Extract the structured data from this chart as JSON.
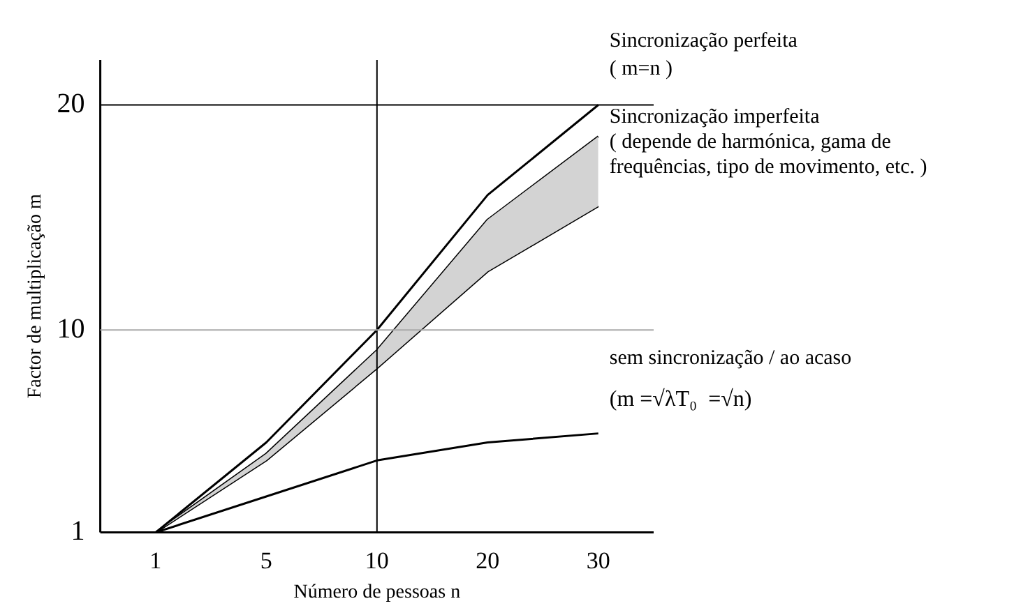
{
  "chart_data": {
    "type": "line",
    "xlabel": "Número de pessoas n",
    "ylabel": "Factor de multiplicação m",
    "categories": [
      "1",
      "5",
      "10",
      "20",
      "30"
    ],
    "ylim": [
      1,
      22
    ],
    "yticks": [
      1,
      10,
      20
    ],
    "series": [
      {
        "name": "Sincronização perfeita",
        "color": "#000000",
        "values": [
          1,
          5,
          10,
          16,
          20
        ]
      },
      {
        "name": "Sincronização imperfeita",
        "color": "#000000",
        "values": [
          1,
          4.5,
          9.1,
          14.9,
          18.6
        ],
        "lower": [
          1,
          4.2,
          8.3,
          12.6,
          15.5
        ],
        "upper": [
          1,
          4.5,
          9.1,
          14.9,
          18.6
        ]
      },
      {
        "name": "sem sincronização / ao acaso",
        "color": "#000000",
        "values": [
          1,
          2.6,
          4.2,
          5.0,
          5.4
        ]
      },
      {
        "color": "#000000",
        "values": [
          1,
          4.2,
          8.3,
          12.6,
          15.5
        ]
      }
    ],
    "annotations": [
      "( m=n )",
      "( depende de harmónica, gama de",
      "frequências, tipo de movimento, etc. )",
      "(m =√λT₀  =√n)"
    ],
    "ref_lines": [
      {
        "axis": "x",
        "value": "10",
        "color": "#000000"
      },
      {
        "axis": "y",
        "value": 10,
        "color": "#aaaaaa"
      },
      {
        "axis": "y",
        "value": 20,
        "color": "#000000"
      }
    ],
    "grid": false,
    "legend": false
  }
}
